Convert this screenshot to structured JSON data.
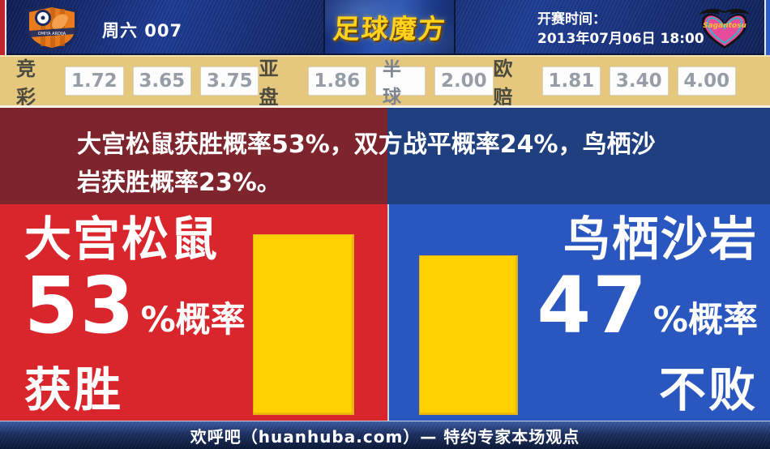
{
  "topbar": {
    "match_label": "周六 007",
    "brand_logo": "足球魔方",
    "kickoff_label": "开赛时间：",
    "kickoff_time": "2013年07月06日 18:00",
    "home_crest": "omiya-ardija-crest",
    "away_crest": "sagan-tosu-crest",
    "away_crest_text": "Sagantosu"
  },
  "odds": {
    "groups": [
      {
        "label": "竞彩",
        "values": [
          "1.72",
          "3.65",
          "3.75"
        ]
      },
      {
        "label": "亚盘",
        "values": [
          "1.86",
          "半球",
          "2.00"
        ]
      },
      {
        "label": "欧赔",
        "values": [
          "1.81",
          "3.40",
          "4.00"
        ]
      }
    ]
  },
  "summary": {
    "text": "大宫松鼠获胜概率53%，双方战平概率24%，鸟栖沙岩获胜概率23%。"
  },
  "home": {
    "name": "大宫松鼠",
    "percent": "53",
    "suffix": "%概率",
    "outcome": "获胜"
  },
  "away": {
    "name": "鸟栖沙岩",
    "percent": "47",
    "suffix": "%概率",
    "outcome": "不败"
  },
  "footer": {
    "text": "欢呼吧（huanhuba.com）— 特约专家本场观点"
  },
  "colors": {
    "home_red": "#d9252c",
    "away_blue": "#2a56c0",
    "summary_maroon": "#7d242d",
    "summary_navy": "#1f3f7e",
    "odds_gold": "#e5c77d",
    "bar_yellow": "#ffd103",
    "topbar_navy": "#13266b"
  },
  "chart_data": {
    "type": "bar",
    "categories": [
      "大宫松鼠",
      "鸟栖沙岩"
    ],
    "values": [
      53,
      47
    ],
    "title": "大宫松鼠获胜概率53%，双方战平概率24%，鸟栖沙岩获胜概率23%。",
    "xlabel": "",
    "ylabel": "概率 (%)",
    "ylim": [
      0,
      100
    ],
    "bar_color": "#ffd103",
    "legend": [],
    "annotations": [
      "大宫松鼠 53%概率获胜",
      "鸟栖沙岩 47%概率不败"
    ],
    "win_probability_home_pct": 53,
    "draw_probability_pct": 24,
    "win_probability_away_pct": 23,
    "unbeaten_probability_away_pct": 47
  }
}
